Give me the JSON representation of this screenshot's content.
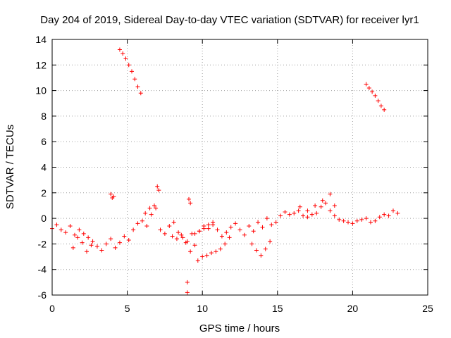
{
  "chart_data": {
    "type": "scatter",
    "title": "Day 204 of 2019, Sidereal Day-to-day VTEC variation (SDTVAR) for receiver lyr1",
    "xlabel": "GPS time / hours",
    "ylabel": "SDTVAR / TECUs",
    "xlim": [
      0,
      25
    ],
    "ylim": [
      -6,
      14
    ],
    "xticks": [
      "0",
      "5",
      "10",
      "15",
      "20",
      "25"
    ],
    "yticks": [
      "-6",
      "-4",
      "-2",
      "0",
      "2",
      "4",
      "6",
      "8",
      "10",
      "12",
      "14"
    ],
    "grid": true,
    "marker": "+",
    "color": "#ff0000",
    "series": [
      {
        "name": "SDTVAR",
        "x": [
          0.0,
          0.3,
          0.6,
          0.9,
          1.2,
          1.5,
          1.8,
          2.1,
          2.4,
          2.7,
          3.0,
          3.3,
          3.6,
          3.9,
          4.2,
          4.5,
          4.8,
          5.1,
          5.4,
          5.7,
          6.0,
          6.3,
          6.6,
          6.9,
          7.2,
          7.5,
          7.8,
          8.1,
          8.4,
          8.7,
          9.0,
          9.3,
          9.5,
          9.8,
          10.1,
          10.4,
          10.7,
          11.0,
          11.3,
          11.6,
          11.9,
          12.2,
          12.5,
          12.8,
          13.1,
          13.4,
          13.7,
          14.0,
          14.3,
          14.6,
          14.9,
          15.2,
          15.5,
          15.8,
          16.1,
          16.4,
          16.7,
          17.0,
          17.3,
          17.6,
          17.9,
          18.2,
          18.5,
          18.8,
          19.1,
          19.4,
          19.7,
          20.0,
          20.3,
          20.6,
          20.9,
          21.2,
          21.5,
          21.8,
          22.1,
          22.4,
          22.7,
          23.0,
          4.5,
          4.7,
          4.9,
          5.1,
          5.3,
          5.5,
          5.7,
          5.9,
          20.9,
          21.1,
          21.3,
          21.5,
          21.7,
          21.9,
          22.1,
          3.9,
          4.0,
          4.1,
          9.1,
          9.2,
          9.0,
          9.0,
          9.7,
          10.0,
          10.3,
          10.6,
          10.9,
          11.2,
          11.5,
          11.8,
          8.0,
          8.3,
          8.6,
          8.9,
          9.2,
          9.5,
          9.8,
          10.1,
          10.4,
          10.7,
          7.0,
          7.1,
          6.8,
          6.5,
          6.2,
          13.3,
          13.6,
          13.9,
          14.2,
          14.5,
          1.4,
          1.7,
          2.0,
          2.3,
          2.6,
          16.5,
          17.0,
          17.5,
          18.0,
          18.5,
          18.8
        ],
        "y": [
          -0.8,
          -0.5,
          -0.9,
          -1.1,
          -0.6,
          -1.3,
          -0.9,
          -1.2,
          -1.5,
          -1.8,
          -2.2,
          -2.5,
          -2.0,
          -1.6,
          -2.3,
          -1.9,
          -1.4,
          -1.7,
          -0.9,
          -0.4,
          -0.2,
          -0.6,
          0.3,
          0.8,
          -0.9,
          -1.2,
          -0.6,
          -0.3,
          -1.1,
          -1.5,
          -1.8,
          -1.2,
          -2.1,
          -1.0,
          -0.6,
          -0.8,
          -0.5,
          -0.9,
          -1.4,
          -1.1,
          -0.7,
          -0.4,
          -0.9,
          -1.3,
          -0.6,
          -1.0,
          -0.3,
          -0.7,
          0.0,
          -0.5,
          -0.3,
          0.2,
          0.5,
          0.3,
          0.4,
          0.6,
          0.2,
          0.1,
          0.3,
          0.4,
          0.9,
          1.2,
          0.6,
          0.2,
          -0.1,
          -0.2,
          -0.3,
          -0.4,
          -0.2,
          -0.1,
          0.0,
          -0.3,
          -0.2,
          0.1,
          0.3,
          0.2,
          0.6,
          0.4,
          13.2,
          12.9,
          12.5,
          12.0,
          11.5,
          10.9,
          10.3,
          9.8,
          10.5,
          10.2,
          9.9,
          9.6,
          9.2,
          8.8,
          8.5,
          1.9,
          1.6,
          1.7,
          1.5,
          1.2,
          -5.0,
          -5.8,
          -3.3,
          -3.0,
          -2.9,
          -2.7,
          -2.6,
          -2.4,
          -2.0,
          -1.5,
          -1.4,
          -1.6,
          -1.3,
          -1.9,
          -2.6,
          -1.2,
          -1.0,
          -0.8,
          -0.5,
          -0.3,
          2.5,
          2.2,
          1.0,
          0.8,
          0.4,
          -2.0,
          -2.5,
          -2.9,
          -2.4,
          -1.8,
          -2.3,
          -1.5,
          -1.9,
          -2.6,
          -2.1,
          0.9,
          0.6,
          1.0,
          1.4,
          1.9,
          1.0
        ]
      }
    ]
  }
}
